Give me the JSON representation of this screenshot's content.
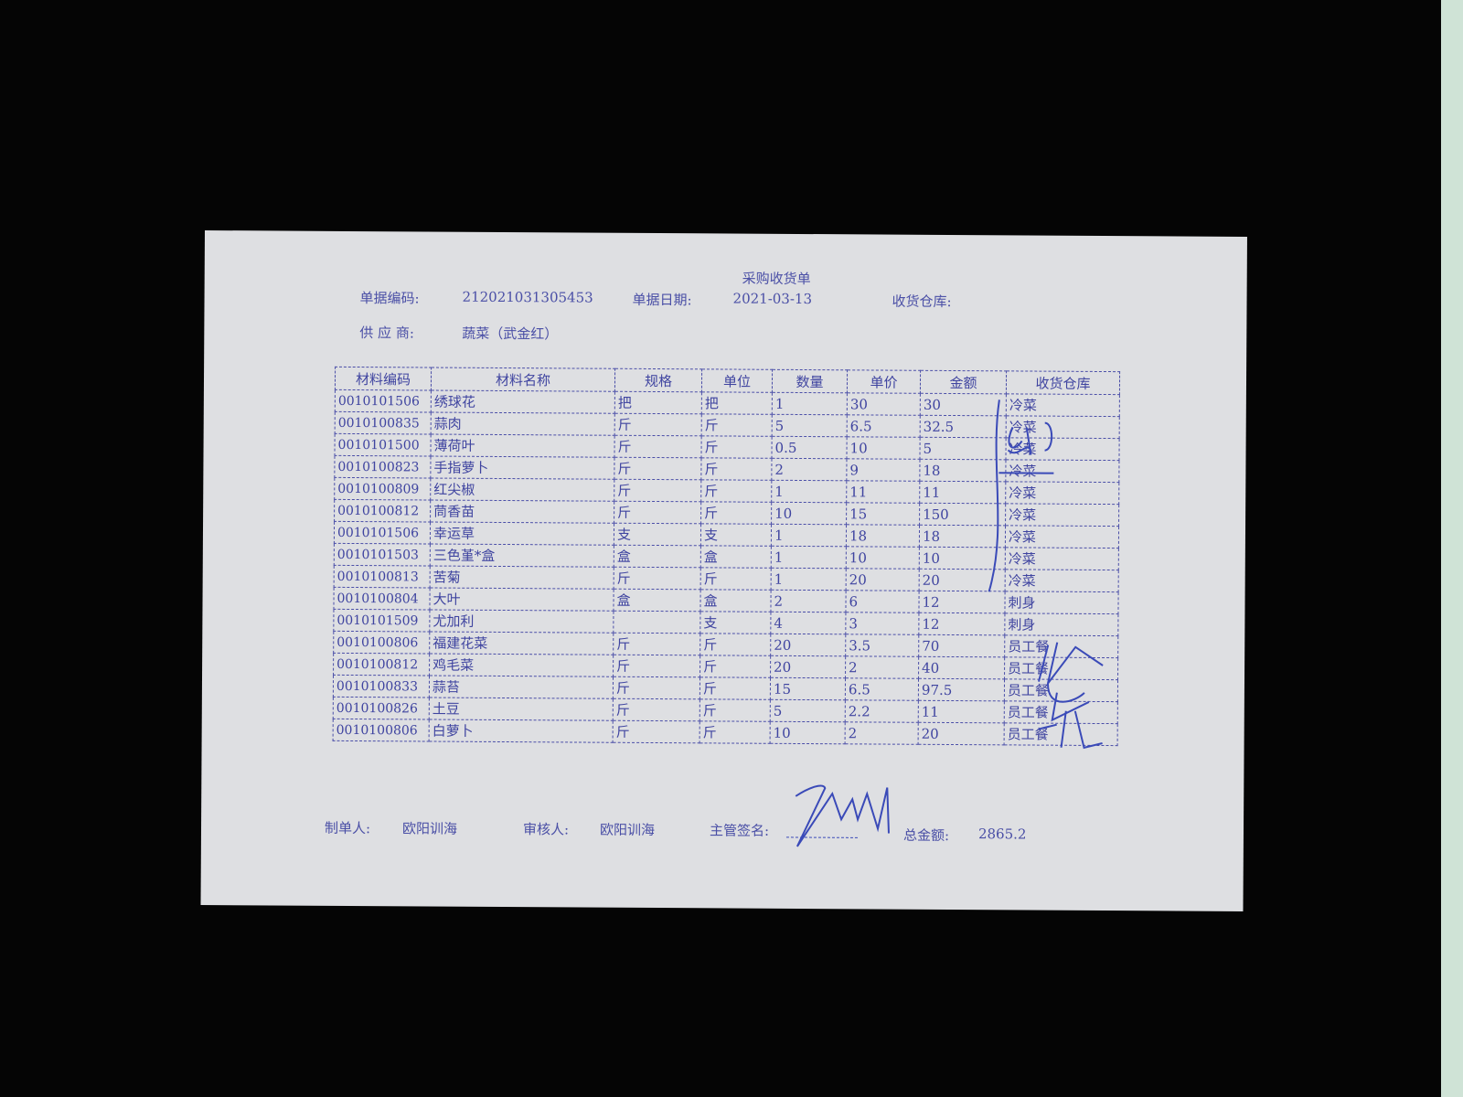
{
  "title": "采购收货单",
  "header": {
    "doc_no_label": "单据编码:",
    "doc_no": "212021031305453",
    "date_label": "单据日期:",
    "date": "2021-03-13",
    "warehouse_label": "收货仓库:",
    "supplier_label": "供 应 商:",
    "supplier": "蔬菜（武金红）"
  },
  "table": {
    "columns": [
      "材料编码",
      "材料名称",
      "规格",
      "单位",
      "数量",
      "单价",
      "金额",
      "收货仓库"
    ],
    "rows": [
      [
        "0010101506",
        "绣球花",
        "把",
        "把",
        "1",
        "30",
        "30",
        "冷菜"
      ],
      [
        "0010100835",
        "蒜肉",
        "斤",
        "斤",
        "5",
        "6.5",
        "32.5",
        "冷菜"
      ],
      [
        "0010101500",
        "薄荷叶",
        "斤",
        "斤",
        "0.5",
        "10",
        "5",
        "冷菜"
      ],
      [
        "0010100823",
        "手指萝卜",
        "斤",
        "斤",
        "2",
        "9",
        "18",
        "冷菜"
      ],
      [
        "0010100809",
        "红尖椒",
        "斤",
        "斤",
        "1",
        "11",
        "11",
        "冷菜"
      ],
      [
        "0010100812",
        "茼香苗",
        "斤",
        "斤",
        "10",
        "15",
        "150",
        "冷菜"
      ],
      [
        "0010101506",
        "幸运草",
        "支",
        "支",
        "1",
        "18",
        "18",
        "冷菜"
      ],
      [
        "0010101503",
        "三色堇*盒",
        "盒",
        "盒",
        "1",
        "10",
        "10",
        "冷菜"
      ],
      [
        "0010100813",
        "苦菊",
        "斤",
        "斤",
        "1",
        "20",
        "20",
        "冷菜"
      ],
      [
        "0010100804",
        "大叶",
        "盒",
        "盒",
        "2",
        "6",
        "12",
        "刺身"
      ],
      [
        "0010101509",
        "尤加利",
        "",
        "支",
        "4",
        "3",
        "12",
        "刺身"
      ],
      [
        "0010100806",
        "福建花菜",
        "斤",
        "斤",
        "20",
        "3.5",
        "70",
        "员工餐"
      ],
      [
        "0010100812",
        "鸡毛菜",
        "斤",
        "斤",
        "20",
        "2",
        "40",
        "员工餐"
      ],
      [
        "0010100833",
        "蒜苔",
        "斤",
        "斤",
        "15",
        "6.5",
        "97.5",
        "员工餐"
      ],
      [
        "0010100826",
        "土豆",
        "斤",
        "斤",
        "5",
        "2.2",
        "11",
        "员工餐"
      ],
      [
        "0010100806",
        "白萝卜",
        "斤",
        "斤",
        "10",
        "2",
        "20",
        "员工餐"
      ]
    ]
  },
  "footer": {
    "maker_label": "制单人:",
    "maker": "欧阳训海",
    "reviewer_label": "审核人:",
    "reviewer": "欧阳训海",
    "supervisor_label": "主管签名:",
    "total_label": "总金额:",
    "total": "2865.2"
  },
  "colors": {
    "ink": "#4a4fa6",
    "paper": "#dedfe2",
    "background": "#050505",
    "handwriting": "#3a4ab8"
  }
}
